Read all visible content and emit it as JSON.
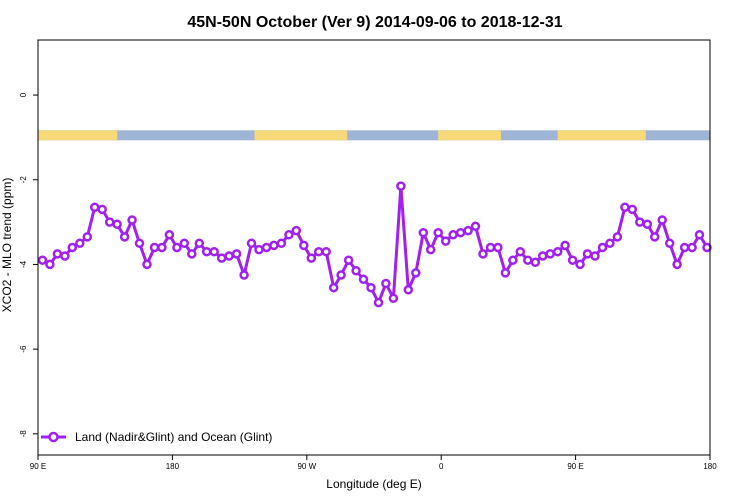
{
  "chart_data": {
    "type": "line",
    "title": "45N-50N October (Ver 9)   2014-09-06 to 2018-12-31",
    "xlabel": "Longitude (deg E)",
    "ylabel": "XCO2 - MLO trend (ppm)",
    "xlim": [
      90,
      540
    ],
    "ylim": [
      -8.5,
      1.3
    ],
    "x_ticks": [
      {
        "value": 90,
        "label": "90 E"
      },
      {
        "value": 180,
        "label": "180"
      },
      {
        "value": 270,
        "label": "90 W"
      },
      {
        "value": 360,
        "label": "0"
      },
      {
        "value": 450,
        "label": "90 E"
      },
      {
        "value": 540,
        "label": "180"
      }
    ],
    "y_ticks": [
      {
        "value": 0,
        "label": "0"
      },
      {
        "value": -2,
        "label": "-2"
      },
      {
        "value": -4,
        "label": "-4"
      },
      {
        "value": -6,
        "label": "-6"
      },
      {
        "value": -8,
        "label": "-8"
      }
    ],
    "legend": {
      "position": "bottom-left"
    },
    "land_ocean_strip": {
      "y_value": -0.95,
      "land_color": "#f7d97a",
      "ocean_color": "#9fb5d8",
      "land_ranges": [
        [
          90,
          143
        ],
        [
          235,
          297
        ],
        [
          358,
          400
        ],
        [
          438,
          497
        ]
      ]
    },
    "series": [
      {
        "name": "Land (Nadir&Glint) and Ocean (Glint)",
        "color": "#a020f0",
        "x": [
          93,
          98,
          103,
          108,
          113,
          118,
          123,
          128,
          133,
          138,
          143,
          148,
          153,
          158,
          163,
          168,
          173,
          178,
          183,
          188,
          193,
          198,
          203,
          208,
          213,
          218,
          223,
          228,
          233,
          238,
          243,
          248,
          253,
          258,
          263,
          268,
          273,
          278,
          283,
          288,
          293,
          298,
          303,
          308,
          313,
          318,
          323,
          328,
          333,
          338,
          343,
          348,
          353,
          358,
          363,
          368,
          373,
          378,
          383,
          388,
          393,
          398,
          403,
          408,
          413,
          418,
          423,
          428,
          433,
          438,
          443,
          448,
          453,
          458,
          463,
          468,
          473,
          478,
          483,
          488,
          493,
          498,
          503,
          508,
          513,
          518,
          523,
          528,
          533,
          538
        ],
        "values": [
          -3.9,
          -4.0,
          -3.75,
          -3.8,
          -3.6,
          -3.5,
          -3.35,
          -2.65,
          -2.7,
          -3.0,
          -3.05,
          -3.35,
          -2.95,
          -3.5,
          -4.0,
          -3.6,
          -3.6,
          -3.3,
          -3.6,
          -3.5,
          -3.75,
          -3.5,
          -3.7,
          -3.7,
          -3.85,
          -3.8,
          -3.75,
          -4.25,
          -3.5,
          -3.65,
          -3.6,
          -3.55,
          -3.5,
          -3.3,
          -3.2,
          -3.55,
          -3.85,
          -3.7,
          -3.7,
          -4.55,
          -4.25,
          -3.9,
          -4.15,
          -4.35,
          -4.55,
          -4.9,
          -4.45,
          -4.8,
          -2.15,
          -4.6,
          -4.2,
          -3.25,
          -3.65,
          -3.25,
          -3.45,
          -3.3,
          -3.25,
          -3.2,
          -3.1,
          -3.75,
          -3.6,
          -3.6,
          -4.2,
          -3.9,
          -3.7,
          -3.9,
          -3.95,
          -3.8,
          -3.75,
          -3.7,
          -3.55,
          -3.9,
          -4.0,
          -3.75,
          -3.8,
          -3.6,
          -3.5,
          -3.35,
          -2.65,
          -2.7,
          -3.0,
          -3.05,
          -3.35,
          -2.95,
          -3.5,
          -4.0,
          -3.6,
          -3.6,
          -3.3,
          -3.6
        ]
      }
    ]
  }
}
